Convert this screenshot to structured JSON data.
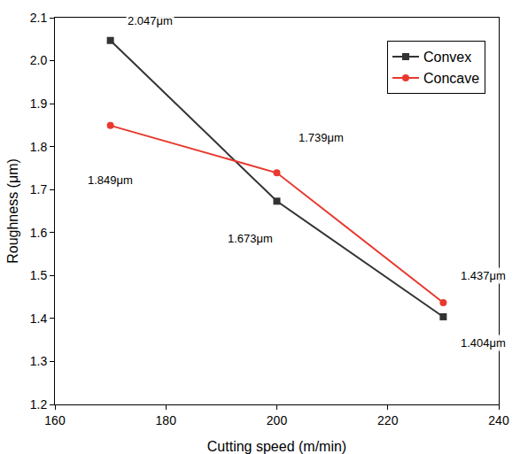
{
  "chart_data": {
    "type": "line",
    "x_label": "Cutting speed (m/min)",
    "y_label": "Roughness (μm)",
    "x": [
      170,
      200,
      230
    ],
    "series": [
      {
        "name": "Convex",
        "color": "#333333",
        "marker": "square",
        "line_style": "solid",
        "values": [
          2.047,
          1.673,
          1.404
        ],
        "value_labels": [
          "2.047μm",
          "1.673μm",
          "1.404μm"
        ]
      },
      {
        "name": "Concave",
        "color": "#e8392f",
        "marker": "circle",
        "line_style": "solid",
        "values": [
          1.849,
          1.739,
          1.437
        ],
        "value_labels": [
          "1.849μm",
          "1.739μm",
          "1.437μm"
        ]
      }
    ],
    "xlim": [
      160,
      240
    ],
    "xticks": [
      160,
      180,
      200,
      220,
      240
    ],
    "ylim": [
      1.2,
      2.1
    ],
    "yticks": [
      1.2,
      1.3,
      1.4,
      1.5,
      1.6,
      1.7,
      1.8,
      1.9,
      {
        "value": 2,
        "label": "2.0"
      },
      2.1
    ],
    "grid": false,
    "legend": "top right",
    "data_labels": true
  }
}
